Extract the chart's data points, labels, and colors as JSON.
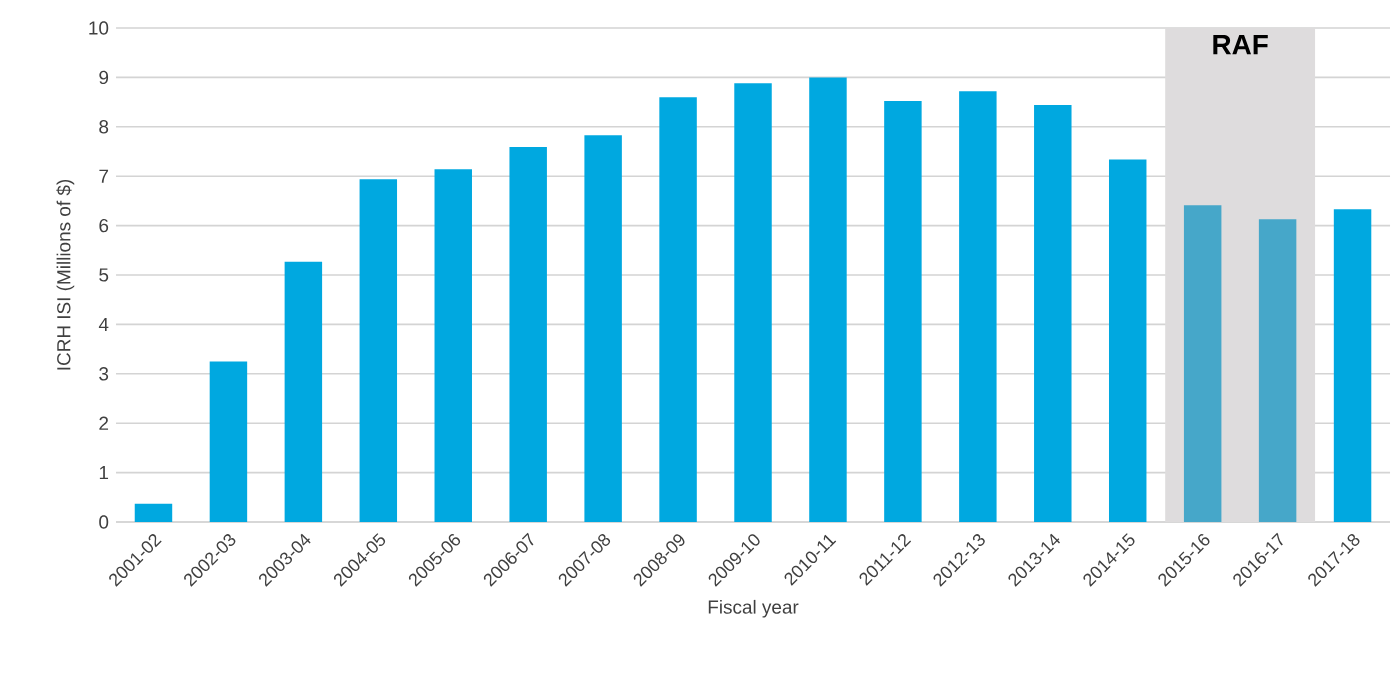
{
  "chart_data": {
    "type": "bar",
    "xlabel": "Fiscal year",
    "ylabel": "ICRH ISI (Millions of $)",
    "categories": [
      "2001-02",
      "2002-03",
      "2003-04",
      "2004-05",
      "2005-06",
      "2006-07",
      "2007-08",
      "2008-09",
      "2009-10",
      "2010-11",
      "2011-12",
      "2012-13",
      "2013-14",
      "2014-15",
      "2015-16",
      "2016-17",
      "2017-18"
    ],
    "values": [
      0.37,
      3.25,
      5.27,
      6.94,
      7.14,
      7.59,
      7.83,
      8.6,
      8.88,
      9.0,
      8.52,
      8.72,
      8.44,
      7.34,
      6.41,
      6.13,
      6.33
    ],
    "colors": [
      "#00a8e0",
      "#00a8e0",
      "#00a8e0",
      "#00a8e0",
      "#00a8e0",
      "#00a8e0",
      "#00a8e0",
      "#00a8e0",
      "#00a8e0",
      "#00a8e0",
      "#00a8e0",
      "#00a8e0",
      "#00a8e0",
      "#00a8e0",
      "#46a7c9",
      "#46a7c9",
      "#00a8e0"
    ],
    "ylim": [
      0,
      10
    ],
    "yticks": [
      0,
      1,
      2,
      3,
      4,
      5,
      6,
      7,
      8,
      9,
      10
    ],
    "grid": "y",
    "bands": [
      {
        "axis": "x",
        "from": "2015-16",
        "to": "2016-17",
        "label": "RAF",
        "color": "#dedcdd"
      }
    ]
  }
}
